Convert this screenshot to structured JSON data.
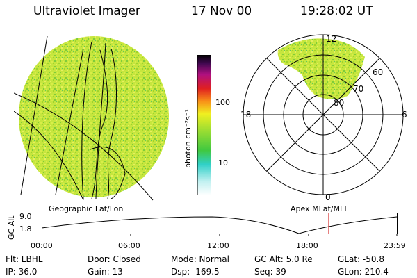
{
  "header": {
    "instrument": "Ultraviolet Imager",
    "date": "17 Nov 00",
    "time": "19:28:02 UT"
  },
  "colorbar": {
    "unit_label": "photon cm⁻²s⁻¹",
    "ticks": [
      "100",
      "10"
    ]
  },
  "polar_plot": {
    "mlt_labels": {
      "top": "12",
      "left": "18",
      "right": "6",
      "bottom": "0"
    },
    "mlat_labels": [
      "60",
      "70",
      "80"
    ]
  },
  "panel_labels": {
    "left": "Geographic Lat/Lon",
    "right": "Apex MLat/MLT"
  },
  "altitude_plot": {
    "axis_title": "GC Alt",
    "y_ticks": [
      "9.0",
      "1.8"
    ],
    "x_ticks": [
      "00:00",
      "06:00",
      "12:00",
      "18:00",
      "23:59"
    ]
  },
  "footer": {
    "row1": [
      "Flt: LBHL",
      "Door: Closed",
      "Mode: Normal",
      "GC Alt: 5.0 Re",
      "GLat: -50.8"
    ],
    "row2": [
      "IP: 36.0",
      "Gain: 13",
      "Dsp: -169.5",
      "Seq: 39",
      "GLon: 210.4"
    ]
  },
  "colors": {
    "disk_base": "#c8e840",
    "cutoff_marker": "#cc0000"
  }
}
